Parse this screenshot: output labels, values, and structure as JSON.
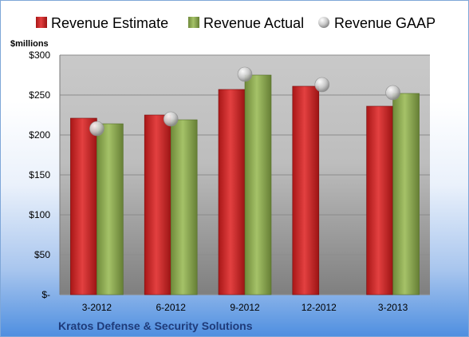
{
  "chart_data": {
    "type": "bar",
    "title": "",
    "unit_label": "$millions",
    "company": "Kratos Defense & Security Solutions",
    "categories": [
      "3-2012",
      "6-2012",
      "9-2012",
      "12-2012",
      "3-2013"
    ],
    "series": [
      {
        "name": "Revenue Estimate",
        "kind": "bar",
        "color": "#d42b2b",
        "values": [
          221,
          225,
          257,
          261,
          236
        ]
      },
      {
        "name": "Revenue Actual",
        "kind": "bar",
        "color": "#8fac55",
        "values": [
          214,
          219,
          275,
          null,
          252
        ]
      },
      {
        "name": "Revenue GAAP",
        "kind": "marker",
        "color": "#c8c8c8",
        "values": [
          208,
          220,
          276,
          263,
          253
        ]
      }
    ],
    "ylim": [
      0,
      300
    ],
    "yticks": [
      0,
      50,
      100,
      150,
      200,
      250,
      300
    ],
    "ytick_labels": [
      "$-",
      "$50",
      "$100",
      "$150",
      "$200",
      "$250",
      "$300"
    ],
    "grid": true,
    "legend_position": "top"
  }
}
